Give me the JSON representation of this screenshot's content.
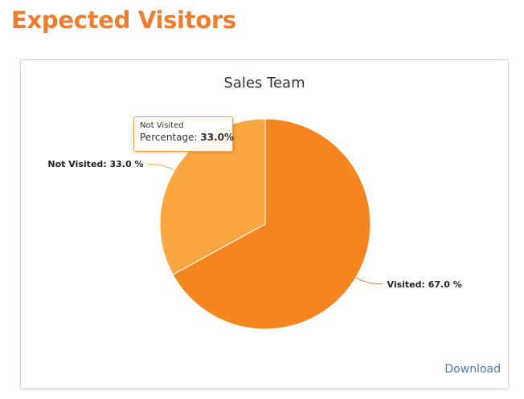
{
  "page": {
    "heading": "Expected Visitors"
  },
  "chart_data": {
    "type": "pie",
    "title": "Sales Team",
    "categories": [
      "Visited",
      "Not Visited"
    ],
    "values": [
      67.0,
      33.0
    ],
    "data_labels": [
      "Visited: 67.0 %",
      "Not Visited: 33.0 %"
    ],
    "colors": [
      "#f5861f",
      "#fba543"
    ],
    "legend": "none"
  },
  "tooltip": {
    "title": "Not Visited",
    "label": "Percentage:",
    "value": "33.0%"
  },
  "download_label": "Download"
}
